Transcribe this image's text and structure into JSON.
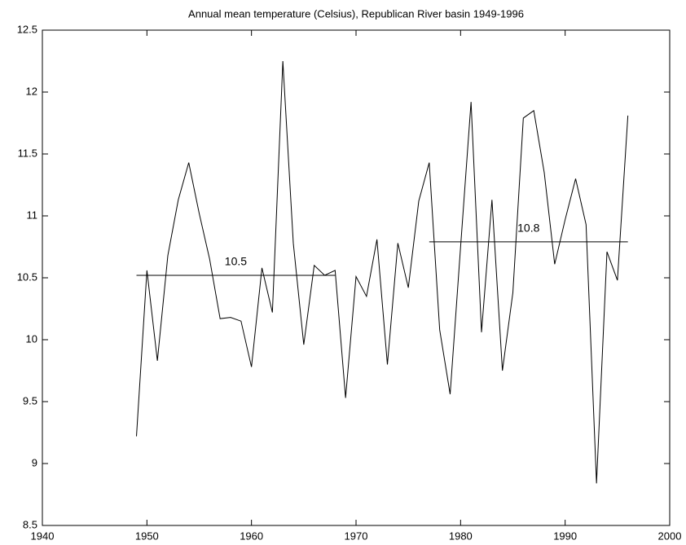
{
  "chart_data": {
    "type": "line",
    "title": "Annual mean temperature (Celsius), Republican River basin 1949-1996",
    "x": [
      1949,
      1950,
      1951,
      1952,
      1953,
      1954,
      1955,
      1956,
      1957,
      1958,
      1959,
      1960,
      1961,
      1962,
      1963,
      1964,
      1965,
      1966,
      1967,
      1968,
      1969,
      1970,
      1971,
      1972,
      1973,
      1974,
      1975,
      1976,
      1977,
      1978,
      1979,
      1980,
      1981,
      1982,
      1983,
      1984,
      1985,
      1986,
      1987,
      1988,
      1989,
      1990,
      1991,
      1992,
      1993,
      1994,
      1995,
      1996
    ],
    "values": [
      9.22,
      10.56,
      9.83,
      10.68,
      11.13,
      11.43,
      11.02,
      10.65,
      10.17,
      10.18,
      10.15,
      9.78,
      10.58,
      10.22,
      12.25,
      10.78,
      9.96,
      10.6,
      10.52,
      10.56,
      9.53,
      10.51,
      10.35,
      10.81,
      9.8,
      10.78,
      10.42,
      11.12,
      11.43,
      10.08,
      9.56,
      10.75,
      11.92,
      10.06,
      11.13,
      9.75,
      10.38,
      11.79,
      11.85,
      11.35,
      10.61,
      10.97,
      11.3,
      10.93,
      8.84,
      10.71,
      10.48,
      11.81
    ],
    "color": "#000000",
    "annotations": [
      {
        "text": "10.5",
        "x": [
          1949,
          1968
        ],
        "y": 10.52
      },
      {
        "text": "10.8",
        "x": [
          1977,
          1996
        ],
        "y": 10.79
      }
    ],
    "xlim": [
      1940,
      2000
    ],
    "xticks": [
      1940,
      1950,
      1960,
      1970,
      1980,
      1990,
      2000
    ],
    "ylim": [
      8.5,
      12.5
    ],
    "yticks": [
      8.5,
      9,
      9.5,
      10,
      10.5,
      11,
      11.5,
      12,
      12.5
    ],
    "grid": false
  }
}
